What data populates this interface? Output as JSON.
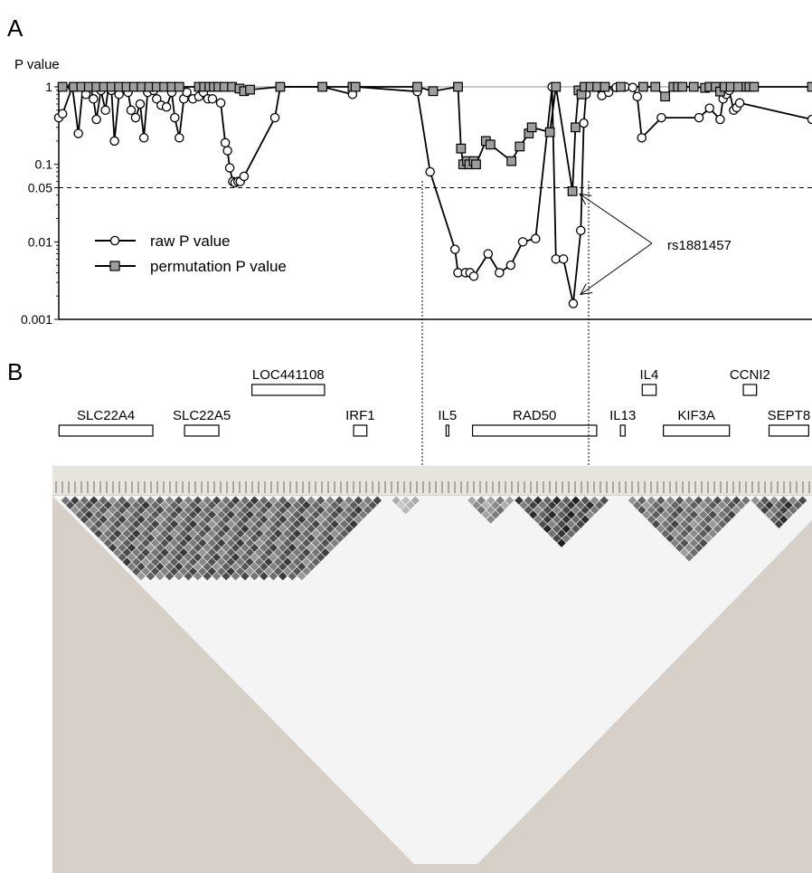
{
  "panels": {
    "a": "A",
    "b": "B"
  },
  "chart_data": [
    {
      "type": "line",
      "panel": "A",
      "ylabel": "P value",
      "yscale": "log",
      "ylim": [
        0.001,
        1
      ],
      "yticks": [
        {
          "value": 1,
          "label": "1"
        },
        {
          "value": 0.1,
          "label": "0.1"
        },
        {
          "value": 0.05,
          "label": "0.05"
        },
        {
          "value": 0.01,
          "label": "0.01"
        },
        {
          "value": 0.001,
          "label": "0.001"
        }
      ],
      "xlim": [
        0,
        100
      ],
      "threshold": 0.05,
      "series": [
        {
          "name": "raw P value",
          "marker": "circle",
          "points": [
            [
              0,
              0.4
            ],
            [
              0.5,
              0.45
            ],
            [
              1.8,
              1
            ],
            [
              2.6,
              0.25
            ],
            [
              3.2,
              1
            ],
            [
              3.6,
              0.8
            ],
            [
              4.2,
              1
            ],
            [
              4.6,
              0.7
            ],
            [
              5,
              0.38
            ],
            [
              5.6,
              0.9
            ],
            [
              6.2,
              0.5
            ],
            [
              6.6,
              1
            ],
            [
              7,
              0.9
            ],
            [
              7.4,
              0.2
            ],
            [
              8,
              0.8
            ],
            [
              8.6,
              1
            ],
            [
              9.2,
              0.85
            ],
            [
              9.6,
              0.5
            ],
            [
              10.2,
              0.4
            ],
            [
              10.8,
              0.6
            ],
            [
              11.3,
              0.22
            ],
            [
              11.8,
              0.85
            ],
            [
              12.2,
              1
            ],
            [
              12.6,
              0.9
            ],
            [
              13,
              0.7
            ],
            [
              13.6,
              0.58
            ],
            [
              14.3,
              0.55
            ],
            [
              15,
              0.85
            ],
            [
              15.4,
              0.4
            ],
            [
              16,
              0.22
            ],
            [
              16.6,
              0.7
            ],
            [
              17,
              0.85
            ],
            [
              17.8,
              0.7
            ],
            [
              18.6,
              0.75
            ],
            [
              19.2,
              0.85
            ],
            [
              19.8,
              0.7
            ],
            [
              20.4,
              0.7
            ],
            [
              21.5,
              0.62
            ],
            [
              22.1,
              0.19
            ],
            [
              22.4,
              0.15
            ],
            [
              22.7,
              0.09
            ],
            [
              23.1,
              0.06
            ],
            [
              23.4,
              0.058
            ],
            [
              23.8,
              0.06
            ],
            [
              24.1,
              0.06
            ],
            [
              24.6,
              0.07
            ],
            [
              28.7,
              0.4
            ],
            [
              29.4,
              1
            ],
            [
              35,
              1
            ],
            [
              39,
              0.8
            ],
            [
              39.4,
              1
            ],
            [
              47.6,
              0.87
            ],
            [
              49.3,
              0.08
            ],
            [
              52.6,
              0.008
            ],
            [
              53,
              0.004
            ],
            [
              54,
              0.004
            ],
            [
              54.6,
              0.004
            ],
            [
              55.1,
              0.0036
            ],
            [
              57,
              0.007
            ],
            [
              58.5,
              0.004
            ],
            [
              60,
              0.005
            ],
            [
              61.6,
              0.01
            ],
            [
              63.3,
              0.011
            ],
            [
              65.5,
              1
            ],
            [
              66,
              0.006
            ],
            [
              67,
              0.006
            ],
            [
              68.3,
              0.0016
            ],
            [
              69.3,
              0.014
            ],
            [
              69.7,
              0.34
            ],
            [
              70,
              0.8
            ],
            [
              71,
              1
            ],
            [
              72.1,
              0.77
            ],
            [
              73,
              0.85
            ],
            [
              74,
              0.98
            ],
            [
              75.2,
              1
            ],
            [
              76.2,
              0.98
            ],
            [
              76.8,
              0.75
            ],
            [
              77.4,
              0.22
            ],
            [
              80,
              0.4
            ],
            [
              85,
              0.4
            ],
            [
              86.4,
              0.53
            ],
            [
              87.8,
              0.38
            ],
            [
              88.2,
              0.7
            ],
            [
              88.6,
              0.8
            ],
            [
              89,
              0.9
            ],
            [
              89.6,
              0.5
            ],
            [
              90,
              0.54
            ],
            [
              90.4,
              0.62
            ],
            [
              100,
              0.38
            ]
          ]
        },
        {
          "name": "permutation P value",
          "marker": "square",
          "points": [
            [
              0.5,
              1
            ],
            [
              2,
              1
            ],
            [
              3,
              1
            ],
            [
              4,
              1
            ],
            [
              5,
              1
            ],
            [
              6,
              1
            ],
            [
              7,
              1
            ],
            [
              8,
              1
            ],
            [
              9,
              1
            ],
            [
              10,
              1
            ],
            [
              11,
              1
            ],
            [
              12,
              1
            ],
            [
              13,
              1
            ],
            [
              14,
              1
            ],
            [
              15,
              1
            ],
            [
              16,
              1
            ],
            [
              18.6,
              1
            ],
            [
              19.3,
              1
            ],
            [
              20,
              1
            ],
            [
              20.6,
              1
            ],
            [
              21.2,
              1
            ],
            [
              22,
              1
            ],
            [
              23,
              1
            ],
            [
              24,
              0.95
            ],
            [
              24.6,
              0.88
            ],
            [
              25.4,
              0.92
            ],
            [
              29.4,
              1
            ],
            [
              35,
              1
            ],
            [
              39,
              1
            ],
            [
              39.4,
              1
            ],
            [
              47.6,
              1
            ],
            [
              49.7,
              0.88
            ],
            [
              53,
              1
            ],
            [
              53.4,
              0.16
            ],
            [
              53.7,
              0.1
            ],
            [
              54.2,
              0.11
            ],
            [
              54.5,
              0.1
            ],
            [
              55.1,
              0.11
            ],
            [
              55.4,
              0.1
            ],
            [
              56.7,
              0.2
            ],
            [
              57.3,
              0.18
            ],
            [
              60.1,
              0.11
            ],
            [
              61.2,
              0.17
            ],
            [
              62.4,
              0.25
            ],
            [
              62.8,
              0.3
            ],
            [
              65.2,
              0.26
            ],
            [
              66,
              1
            ],
            [
              68.2,
              0.045
            ],
            [
              68.6,
              0.3
            ],
            [
              69,
              0.9
            ],
            [
              69.4,
              0.8
            ],
            [
              69.8,
              1
            ],
            [
              70.6,
              1
            ],
            [
              71.5,
              1
            ],
            [
              72.5,
              1
            ],
            [
              74.6,
              1
            ],
            [
              77.6,
              1
            ],
            [
              79.2,
              1
            ],
            [
              80.5,
              0.75
            ],
            [
              81.6,
              1
            ],
            [
              82.2,
              1
            ],
            [
              82.8,
              1
            ],
            [
              84.3,
              1
            ],
            [
              85.8,
              0.97
            ],
            [
              86.4,
              1
            ],
            [
              87.2,
              1
            ],
            [
              87.8,
              0.87
            ],
            [
              88.4,
              1
            ],
            [
              89.2,
              1
            ],
            [
              90.2,
              1
            ],
            [
              91.3,
              1
            ],
            [
              91.7,
              1
            ],
            [
              92.3,
              1
            ],
            [
              100,
              1
            ]
          ]
        }
      ],
      "annotation": {
        "label": "rs1881457"
      }
    },
    {
      "type": "heatmap",
      "panel": "B",
      "description_free": true,
      "genes": [
        {
          "name": "SLC22A4",
          "start": 1.0,
          "end": 15.2,
          "row": 2
        },
        {
          "name": "SLC22A5",
          "start": 20.0,
          "end": 25.2,
          "row": 2
        },
        {
          "name": "LOC441108",
          "start": 30.2,
          "end": 41.2,
          "row": 1
        },
        {
          "name": "IRF1",
          "start": 45.6,
          "end": 47.6,
          "row": 2
        },
        {
          "name": "IL5",
          "start": 59.6,
          "end": 60.0,
          "row": 2
        },
        {
          "name": "RAD50",
          "start": 63.6,
          "end": 82.4,
          "row": 2
        },
        {
          "name": "IL13",
          "start": 86.0,
          "end": 86.7,
          "row": 2
        },
        {
          "name": "IL4",
          "start": 89.3,
          "end": 91.4,
          "row": 1
        },
        {
          "name": "KIF3A",
          "start": 92.5,
          "end": 102.5,
          "row": 2
        },
        {
          "name": "CCNI2",
          "start": 104.6,
          "end": 106.6,
          "row": 1
        },
        {
          "name": "SEPT8",
          "start": 108.5,
          "end": 114.5,
          "row": 2
        }
      ]
    }
  ]
}
